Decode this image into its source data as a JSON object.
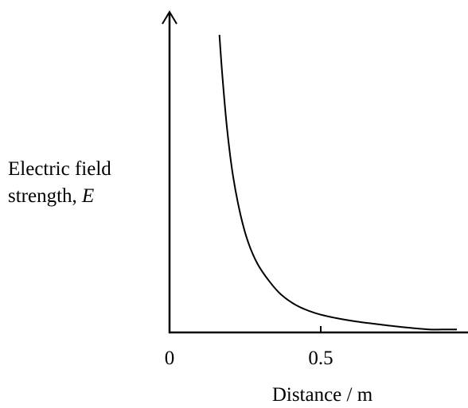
{
  "chart_data": {
    "type": "line",
    "xlabel": "Distance / m",
    "ylabel_text": "Electric field strength,",
    "ylabel_line1": "Electric field",
    "ylabel_line2": "strength,",
    "ylabel_symbol": "E",
    "xlim": [
      0,
      0.95
    ],
    "ylim": [
      0,
      1
    ],
    "x_ticks": [
      {
        "value": 0,
        "label": "0"
      },
      {
        "value": 0.5,
        "label": "0.5"
      }
    ],
    "y_ticks": [],
    "grid": false,
    "series": [
      {
        "x": [
          0.165,
          0.175,
          0.19,
          0.21,
          0.235,
          0.26,
          0.29,
          0.33,
          0.37,
          0.42,
          0.48,
          0.55,
          0.62,
          0.7,
          0.78,
          0.86,
          0.9,
          0.95
        ],
        "y": [
          0.99,
          0.85,
          0.68,
          0.52,
          0.39,
          0.3,
          0.23,
          0.17,
          0.125,
          0.09,
          0.065,
          0.048,
          0.036,
          0.026,
          0.017,
          0.01,
          0.01,
          0.01
        ]
      }
    ]
  }
}
